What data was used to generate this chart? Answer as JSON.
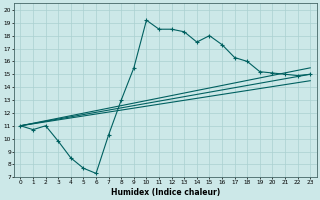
{
  "title": "",
  "xlabel": "Humidex (Indice chaleur)",
  "xlim": [
    -0.5,
    23.5
  ],
  "ylim": [
    7,
    20.5
  ],
  "xticks": [
    0,
    1,
    2,
    3,
    4,
    5,
    6,
    7,
    8,
    9,
    10,
    11,
    12,
    13,
    14,
    15,
    16,
    17,
    18,
    19,
    20,
    21,
    22,
    23
  ],
  "yticks": [
    7,
    8,
    9,
    10,
    11,
    12,
    13,
    14,
    15,
    16,
    17,
    18,
    19,
    20
  ],
  "bg_color": "#cce8e8",
  "grid_color": "#aad0d0",
  "line_color": "#006060",
  "curve_x": [
    0,
    1,
    2,
    3,
    4,
    5,
    6,
    7,
    8,
    9,
    10,
    11,
    12,
    13,
    14,
    15,
    16,
    17,
    18,
    19,
    20,
    21,
    22,
    23
  ],
  "curve_y": [
    11,
    10.7,
    11,
    9.8,
    8.5,
    7.7,
    7.3,
    10.3,
    13,
    15.5,
    19.2,
    18.5,
    18.5,
    18.3,
    17.5,
    18.0,
    17.3,
    16.3,
    16.0,
    15.2,
    15.1,
    15.0,
    14.9,
    15.0
  ],
  "line1_x": [
    0,
    23
  ],
  "line1_y": [
    11,
    15.0
  ],
  "line2_x": [
    0,
    23
  ],
  "line2_y": [
    11,
    15.5
  ],
  "line3_x": [
    0,
    23
  ],
  "line3_y": [
    11,
    14.5
  ]
}
